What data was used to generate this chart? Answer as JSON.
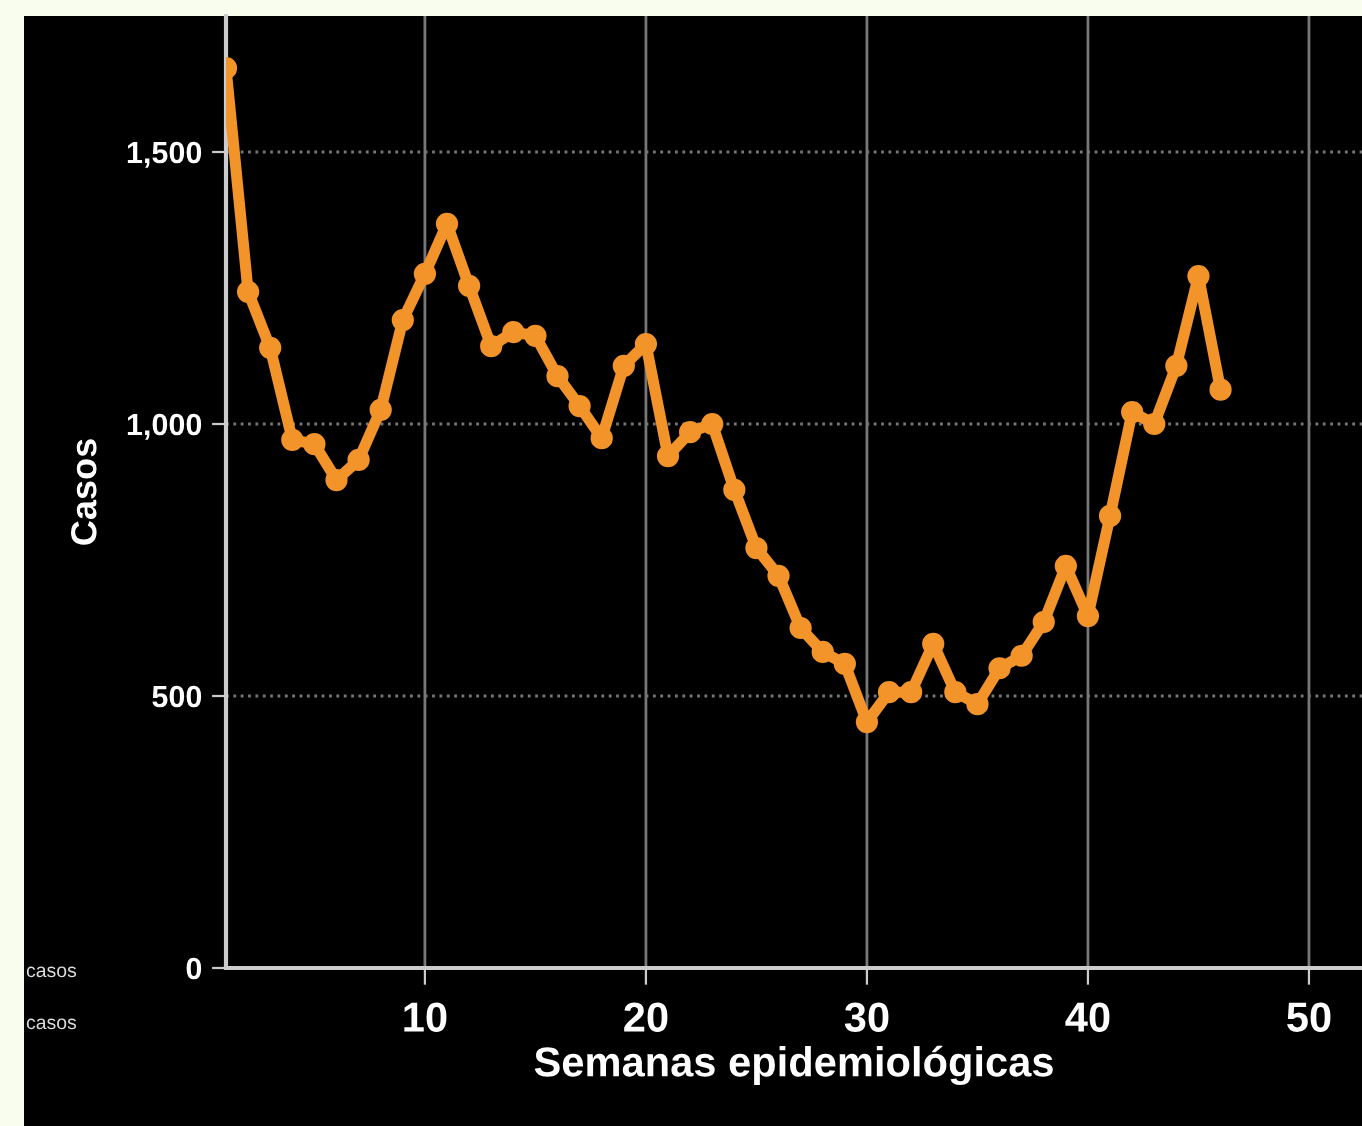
{
  "chart_data": {
    "type": "line",
    "xlabel": "Semanas epidemiológicas",
    "ylabel": "Casos",
    "x": [
      1,
      2,
      3,
      4,
      5,
      6,
      7,
      8,
      9,
      10,
      11,
      12,
      13,
      14,
      15,
      16,
      17,
      18,
      19,
      20,
      21,
      22,
      23,
      24,
      25,
      26,
      27,
      28,
      29,
      30,
      31,
      32,
      33,
      34,
      35,
      36,
      37,
      38,
      39,
      40,
      41,
      42,
      43,
      44,
      45,
      46
    ],
    "series": [
      {
        "color": "#f3942b",
        "values": [
          1654,
          1243,
          1140,
          971,
          963,
          897,
          934,
          1026,
          1191,
          1276,
          1368,
          1254,
          1143,
          1169,
          1162,
          1088,
          1033,
          974,
          1107,
          1147,
          941,
          985,
          1000,
          879,
          772,
          721,
          625,
          581,
          559,
          452,
          507,
          507,
          596,
          507,
          485,
          551,
          574,
          636,
          739,
          647,
          831,
          1022,
          1000,
          1107,
          1272,
          1063
        ]
      }
    ],
    "xlim": [
      1,
      52.4
    ],
    "ylim": [
      0,
      1750
    ],
    "xticks": [
      10,
      20,
      30,
      40,
      50
    ],
    "yticks": [
      {
        "value": 0,
        "label": "0"
      },
      {
        "value": 500,
        "label": "500"
      },
      {
        "value": 1000,
        "label": "1,000"
      },
      {
        "value": 1500,
        "label": "1,500"
      }
    ],
    "grid": true,
    "marker": "circle",
    "line_style": "solid",
    "legend": false,
    "annotations": [
      "casos",
      "casos"
    ]
  }
}
